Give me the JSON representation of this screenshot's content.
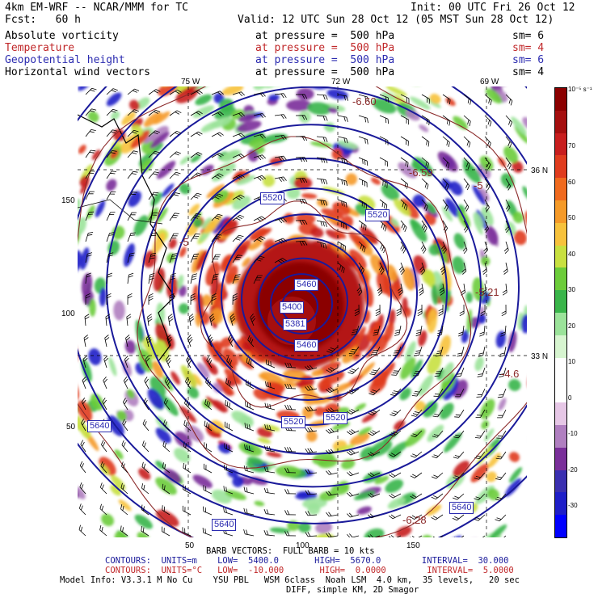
{
  "header": {
    "model": "4km EM-WRF -- NCAR/MMM for TC",
    "init": "Init: 00 UTC Fri 26 Oct 12",
    "fcst": "Fcst:   60 h",
    "valid": "Valid: 12 UTC Sun 28 Oct 12 (05 MST Sun 28 Oct 12)",
    "fields": [
      {
        "name": "Absolute vorticity",
        "level": "at pressure =  500 hPa",
        "sm": "sm= 6",
        "color": "#000000"
      },
      {
        "name": "Temperature",
        "level": "at pressure =  500 hPa",
        "sm": "sm= 4",
        "color": "#c0282a"
      },
      {
        "name": "Geopotential height",
        "level": "at pressure =  500 hPa",
        "sm": "sm= 6",
        "color": "#2b2bb0"
      },
      {
        "name": "Horizontal wind vectors",
        "level": "at pressure =  500 hPa",
        "sm": "sm= 4",
        "color": "#000000"
      }
    ]
  },
  "axes": {
    "top_lon": [
      "75 W",
      "72 W",
      "69 W"
    ],
    "right_lat": [
      "36 N",
      "33 N"
    ],
    "left_grid": [
      "150",
      "100",
      "50"
    ],
    "bottom_grid": [
      "50",
      "100",
      "150"
    ]
  },
  "contour_labels": [
    "5520",
    "5520",
    "5460",
    "5400",
    "5381",
    "5460",
    "5520",
    "5520",
    "5640",
    "5640",
    "5640"
  ],
  "temp_labels": [
    "-6.60",
    "-5",
    "-5.21",
    "-4.6",
    "-5",
    "-6.28",
    "-6.59"
  ],
  "colorbar": {
    "unit": "10⁻⁵ s⁻¹",
    "ticks": [
      "70",
      "60",
      "50",
      "40",
      "30",
      "20",
      "10",
      "0",
      "-10",
      "-20",
      "-30"
    ],
    "colors": [
      "#8b0000",
      "#a50f0f",
      "#c81e1e",
      "#e03c1e",
      "#f06a1e",
      "#f59a28",
      "#f7c23c",
      "#c8e040",
      "#6ccc3a",
      "#39b54a",
      "#9be39a",
      "#d7f5d0",
      "#ffffff",
      "#ffffff",
      "#e6c7e6",
      "#b07fc0",
      "#7a2f9a",
      "#3a2fb0",
      "#1e1ec8",
      "#0000ff"
    ]
  },
  "footer": {
    "barb": "BARB VECTORS:  FULL BARB = 10 kts",
    "contours1": "CONTOURS:  UNITS=m    LOW=  5400.0       HIGH=  5670.0        INTERVAL=  30.000",
    "contours2": "CONTOURS:  UNITS=°C   LOW=  -10.000       HIGH=  0.0000        INTERVAL=  5.0000",
    "model_info": "Model Info: V3.3.1 M No Cu    YSU PBL   WSM 6class  Noah LSM  4.0 km,  35 levels,   20 sec",
    "model_info2": "DIFF, simple KM, 2D Smagor"
  }
}
